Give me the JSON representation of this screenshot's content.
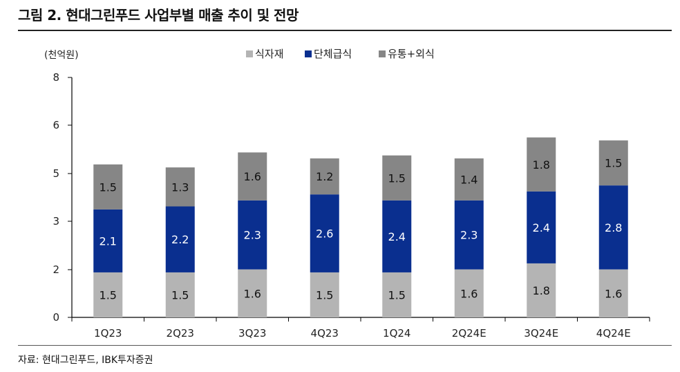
{
  "header": {
    "title": "그림 2. 현대그린푸드 사업부별 매출 추이 및 전망"
  },
  "footer": {
    "source": "자료: 현대그린푸드, IBK투자증권"
  },
  "chart_data": {
    "type": "stacked-bar",
    "unit_label": "(천억원)",
    "categories": [
      "1Q23",
      "2Q23",
      "3Q23",
      "4Q23",
      "1Q24",
      "2Q24E",
      "3Q24E",
      "4Q24E"
    ],
    "series": [
      {
        "name": "식자재",
        "color": "#b4b4b4",
        "values": [
          1.5,
          1.5,
          1.6,
          1.5,
          1.5,
          1.6,
          1.8,
          1.6
        ]
      },
      {
        "name": "단체급식",
        "color": "#0a2f8f",
        "values": [
          2.1,
          2.2,
          2.3,
          2.6,
          2.4,
          2.3,
          2.4,
          2.8
        ]
      },
      {
        "name": "유통+외식",
        "color": "#868686",
        "values": [
          1.5,
          1.3,
          1.6,
          1.2,
          1.5,
          1.4,
          1.8,
          1.5
        ]
      }
    ],
    "y_ticks": [
      "0",
      "2",
      "3",
      "5",
      "6",
      "8"
    ],
    "legend_position": "top-center"
  }
}
